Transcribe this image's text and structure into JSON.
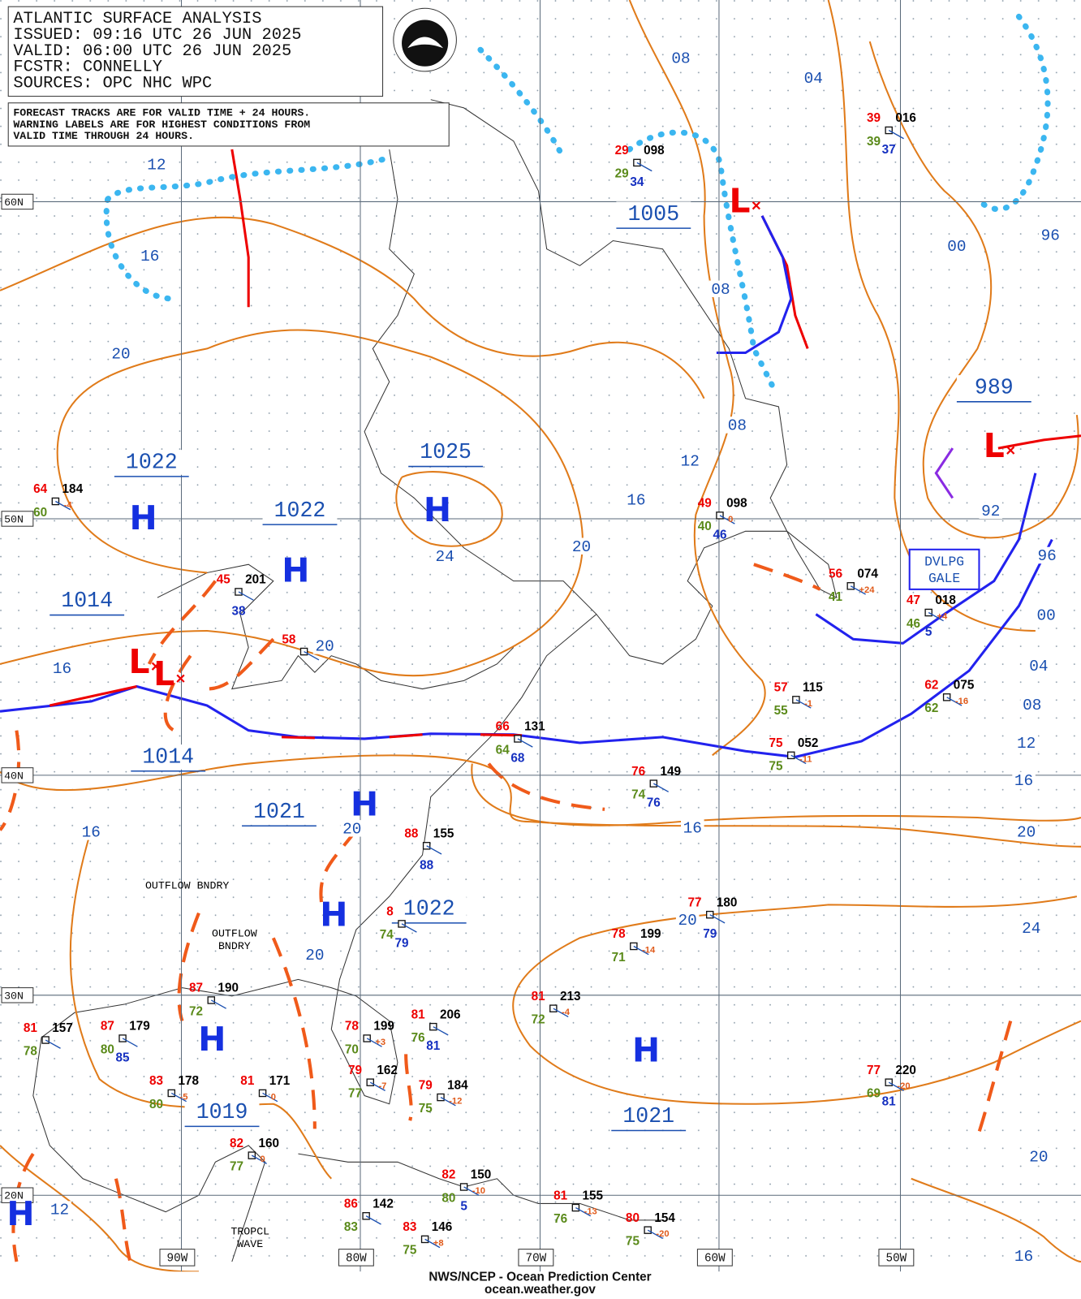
{
  "header": {
    "lines": [
      "ATLANTIC SURFACE ANALYSIS",
      "ISSUED: 09:16 UTC 26 JUN 2025",
      "VALID:  06:00 UTC 26 JUN 2025",
      "FCSTR:  CONNELLY",
      "SOURCES: OPC NHC WPC"
    ]
  },
  "notes": [
    "FORECAST TRACKS ARE FOR VALID TIME + 24 HOURS.",
    "WARNING LABELS ARE FOR HIGHEST CONDITIONS FROM",
    "VALID TIME THROUGH 24 HOURS."
  ],
  "latitudes": [
    "60N",
    "50N",
    "40N",
    "30N",
    "20N"
  ],
  "longitudes": [
    "90W",
    "80W",
    "70W",
    "60W",
    "50W"
  ],
  "centers": [
    {
      "type": "H",
      "pressure": "1022"
    },
    {
      "type": "H",
      "pressure": "1022"
    },
    {
      "type": "H",
      "pressure": "1025"
    },
    {
      "type": "L",
      "pressure": "1005"
    },
    {
      "type": "L",
      "pressure": "989"
    },
    {
      "type": "H",
      "pressure": "1021"
    },
    {
      "type": "H",
      "pressure": "1022"
    },
    {
      "type": "H",
      "pressure": "1021"
    },
    {
      "type": "H",
      "pressure": "1019"
    },
    {
      "type": "L",
      "pressure": "1014"
    },
    {
      "type": "L",
      "pressure": "1014"
    },
    {
      "type": "H"
    }
  ],
  "isobar_labels": [
    "08",
    "04",
    "12",
    "16",
    "20",
    "00",
    "96",
    "08",
    "08",
    "12",
    "16",
    "20",
    "24",
    "20",
    "16",
    "92",
    "96",
    "00",
    "04",
    "08",
    "12",
    "16",
    "20",
    "16",
    "16",
    "20",
    "20",
    "20",
    "24",
    "20",
    "12",
    "16"
  ],
  "stations": [
    {
      "temp": "64",
      "pressure": "184",
      "tendency": "-4",
      "dewpoint": "60"
    },
    {
      "temp": "45",
      "pressure": "201",
      "visibility": "38"
    },
    {
      "temp": "58"
    },
    {
      "temp": "49",
      "pressure": "098",
      "tendency": "0",
      "dewpoint": "40",
      "visibility": "46"
    },
    {
      "temp": "56",
      "pressure": "074",
      "tendency": "+24",
      "dewpoint": "41"
    },
    {
      "temp": "47",
      "pressure": "018",
      "tendency": "+4",
      "dewpoint": "46",
      "visibility": "5"
    },
    {
      "temp": "57",
      "pressure": "115",
      "tendency": "-1",
      "dewpoint": "55"
    },
    {
      "temp": "62",
      "pressure": "075",
      "tendency": "-16",
      "dewpoint": "62"
    },
    {
      "temp": "75",
      "pressure": "052",
      "tendency": "-11",
      "dewpoint": "75"
    },
    {
      "temp": "76",
      "pressure": "149",
      "dewpoint": "74",
      "visibility": "76"
    },
    {
      "temp": "66",
      "pressure": "131",
      "dewpoint": "64",
      "visibility": "68"
    },
    {
      "temp": "88",
      "pressure": "155",
      "visibility": "88"
    },
    {
      "temp": "77",
      "pressure": "180",
      "visibility": "79"
    },
    {
      "temp": "78",
      "pressure": "199",
      "tendency": "-14",
      "dewpoint": "71"
    },
    {
      "temp": "81",
      "pressure": "213",
      "tendency": "-4",
      "dewpoint": "72"
    },
    {
      "temp": "77",
      "pressure": "220",
      "tendency": "-20",
      "dewpoint": "69",
      "visibility": "81"
    },
    {
      "temp": "87",
      "pressure": "190",
      "dewpoint": "72"
    },
    {
      "temp": "87",
      "pressure": "179",
      "dewpoint": "80",
      "visibility": "85"
    },
    {
      "temp": "81",
      "pressure": "157",
      "dewpoint": "78"
    },
    {
      "temp": "83",
      "pressure": "178",
      "tendency": "-5",
      "dewpoint": "80"
    },
    {
      "temp": "81",
      "pressure": "171",
      "tendency": "0"
    },
    {
      "temp": "78",
      "pressure": "199",
      "tendency": "+3",
      "dewpoint": "70"
    },
    {
      "temp": "81",
      "pressure": "206",
      "dewpoint": "76",
      "visibility": "81"
    },
    {
      "temp": "79",
      "pressure": "162",
      "tendency": "-7",
      "dewpoint": "77"
    },
    {
      "temp": "79",
      "pressure": "184",
      "tendency": "-12",
      "dewpoint": "75"
    },
    {
      "temp": "82",
      "pressure": "160",
      "tendency": "0",
      "dewpoint": "77"
    },
    {
      "temp": "82",
      "pressure": "150",
      "tendency": "-10",
      "dewpoint": "80",
      "visibility": "5"
    },
    {
      "temp": "86",
      "pressure": "142",
      "dewpoint": "83"
    },
    {
      "temp": "83",
      "pressure": "146",
      "tendency": "+8",
      "dewpoint": "75"
    },
    {
      "temp": "81",
      "pressure": "155",
      "tendency": "-13",
      "dewpoint": "76"
    },
    {
      "temp": "80",
      "pressure": "154",
      "tendency": "-20",
      "dewpoint": "75"
    },
    {
      "temp": "39",
      "pressure": "016",
      "dewpoint": "39",
      "visibility": "37"
    },
    {
      "temp": "29",
      "pressure": "098",
      "dewpoint": "29",
      "visibility": "34"
    },
    {
      "temp": "8",
      "dewpoint": "74",
      "visibility": "79"
    }
  ],
  "annotations": [
    "DVLPG",
    "GALE",
    "OUTFLOW BNDRY",
    "OUTFLOW",
    "BNDRY",
    "TROPCL",
    "WAVE"
  ],
  "footer": [
    "NWS/NCEP - Ocean Prediction Center",
    "ocean.weather.gov"
  ]
}
